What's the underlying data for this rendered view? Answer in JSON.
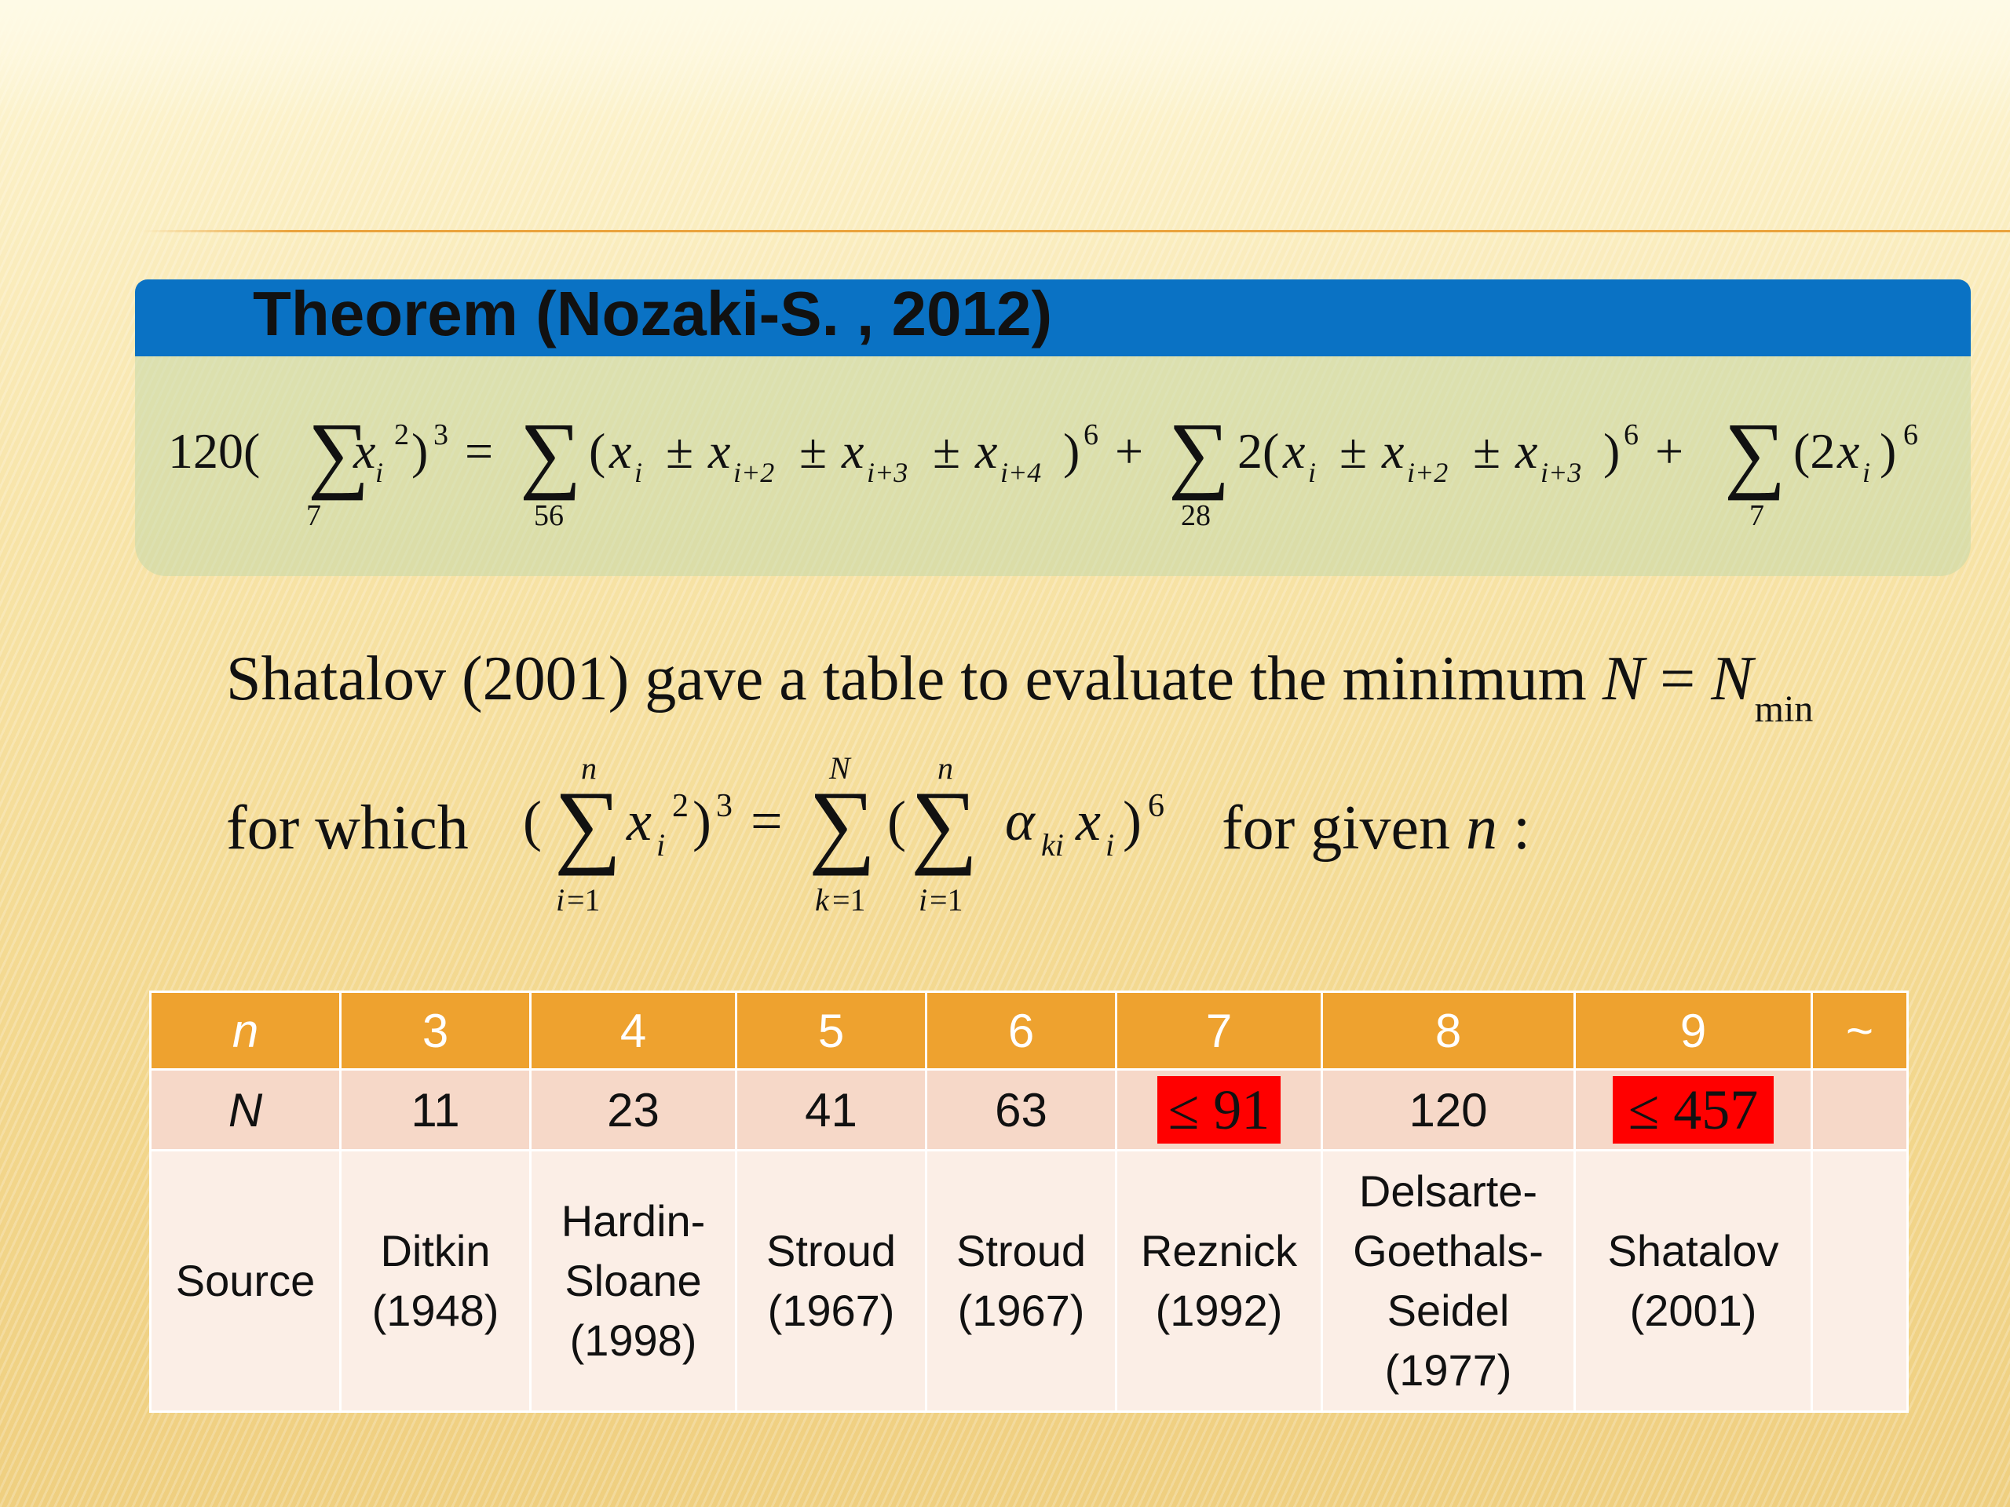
{
  "theorem": {
    "title": "Theorem (Nozaki-S. , 2012)"
  },
  "paragraph": {
    "line1_text": "Shatalov (2001) gave a table to evaluate the minimum ",
    "line1_var": "N",
    "line1_eq": " = ",
    "line1_var2": "N",
    "line1_sub": "min",
    "line2_prefix": "for which",
    "line2_suffix": "for given ",
    "line2_var": "n",
    "line2_colon": " :"
  },
  "table": {
    "header": [
      "n",
      "3",
      "4",
      "5",
      "6",
      "7",
      "8",
      "9",
      "~"
    ],
    "n_row": [
      "N",
      "11",
      "23",
      "41",
      "63",
      "≤ 91",
      "120",
      "≤ 457",
      ""
    ],
    "source_row": [
      [
        "Source"
      ],
      [
        "Ditkin",
        "(1948)"
      ],
      [
        "Hardin-",
        "Sloane",
        "(1998)"
      ],
      [
        "Stroud",
        "(1967)"
      ],
      [
        "Stroud",
        "(1967)"
      ],
      [
        "Reznick",
        "(1992)"
      ],
      [
        "Delsarte-",
        "Goethals-",
        "Seidel",
        "(1977)"
      ],
      [
        "Shatalov",
        "(2001)"
      ],
      []
    ],
    "highlight_color": "#ff0000",
    "header_color": "#eea22f"
  },
  "colors": {
    "theorem_header": "#0a72c4",
    "theorem_body": "#c4d8aa",
    "rule": "#eaa23c"
  }
}
